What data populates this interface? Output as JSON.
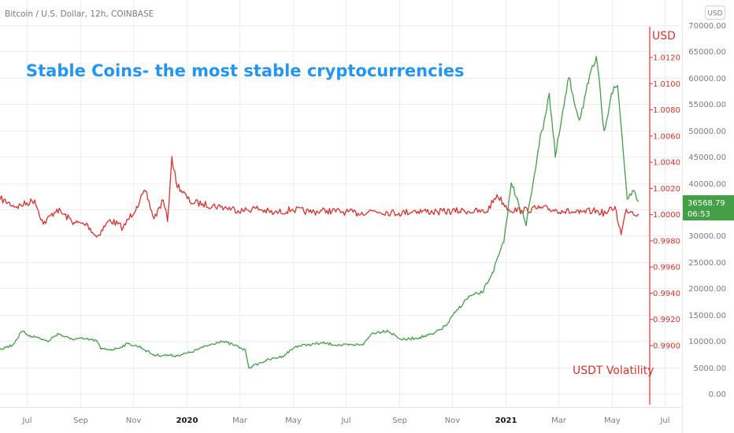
{
  "header": {
    "symbol_title": "Bitcoin / U.S. Dollar, 12h, COINBASE",
    "currency_button": "USD"
  },
  "annotations": {
    "main_title": "Stable Coins- the most stable cryptocurrencies",
    "usd_axis_label": "USD",
    "usdt_label": "USDT Volatility"
  },
  "price_tag": {
    "price": "36568.79",
    "countdown": "06:53"
  },
  "colors": {
    "btc_line": "#43a047",
    "usdt_line": "#e0302b",
    "title": "#2196f3",
    "price_tag": "#43a047",
    "grid": "#eceef2",
    "axis_text": "#787b86"
  },
  "chart_data": {
    "type": "line",
    "title": "Stable Coins- the most stable cryptocurrencies",
    "x_axis": {
      "tick_labels": [
        "Jul",
        "Sep",
        "Nov",
        "2020",
        "Mar",
        "May",
        "Jul",
        "Sep",
        "Nov",
        "2021",
        "Mar",
        "May",
        "Jul"
      ],
      "bold_labels": [
        "2020",
        "2021"
      ],
      "range": [
        "2019-06",
        "2021-07"
      ]
    },
    "y_axis_right": {
      "ticks": [
        "0.00",
        "5000.00",
        "10000.00",
        "15000.00",
        "20000.00",
        "25000.00",
        "30000.00",
        "35000.00",
        "40000.00",
        "45000.00",
        "50000.00",
        "55000.00",
        "60000.00",
        "65000.00",
        "70000.00"
      ],
      "range": [
        -1000,
        71000
      ]
    },
    "y_axis_usdt": {
      "label": "USD",
      "ticks": [
        "0.9900",
        "0.9920",
        "0.9940",
        "0.9960",
        "0.9980",
        "1.0000",
        "1.0020",
        "1.0040",
        "1.0060",
        "1.0080",
        "1.0100",
        "1.0120"
      ],
      "range": [
        0.9885,
        1.0127
      ]
    },
    "grid": true,
    "series": [
      {
        "name": "",
        "color": "#43a047",
        "axis": "right",
        "points": [
          [
            "2019-06-01",
            8500
          ],
          [
            "2019-06-15",
            9200
          ],
          [
            "2019-06-26",
            11800
          ],
          [
            "2019-07-05",
            11000
          ],
          [
            "2019-07-15",
            10600
          ],
          [
            "2019-07-25",
            9900
          ],
          [
            "2019-08-06",
            11400
          ],
          [
            "2019-08-20",
            10400
          ],
          [
            "2019-09-05",
            10400
          ],
          [
            "2019-09-20",
            10100
          ],
          [
            "2019-09-25",
            8500
          ],
          [
            "2019-10-10",
            8400
          ],
          [
            "2019-10-26",
            9500
          ],
          [
            "2019-11-10",
            8800
          ],
          [
            "2019-11-25",
            7300
          ],
          [
            "2019-12-10",
            7300
          ],
          [
            "2019-12-20",
            7200
          ],
          [
            "2020-01-05",
            7800
          ],
          [
            "2020-01-20",
            8800
          ],
          [
            "2020-02-10",
            10000
          ],
          [
            "2020-02-26",
            9200
          ],
          [
            "2020-03-08",
            8200
          ],
          [
            "2020-03-12",
            4900
          ],
          [
            "2020-03-16",
            5200
          ],
          [
            "2020-04-01",
            6300
          ],
          [
            "2020-04-20",
            7100
          ],
          [
            "2020-05-05",
            9000
          ],
          [
            "2020-05-20",
            9300
          ],
          [
            "2020-06-05",
            9600
          ],
          [
            "2020-06-25",
            9200
          ],
          [
            "2020-07-10",
            9200
          ],
          [
            "2020-07-22",
            9500
          ],
          [
            "2020-08-01",
            11500
          ],
          [
            "2020-08-18",
            12000
          ],
          [
            "2020-09-05",
            10200
          ],
          [
            "2020-09-25",
            10700
          ],
          [
            "2020-10-10",
            11300
          ],
          [
            "2020-10-25",
            13000
          ],
          [
            "2020-11-05",
            15500
          ],
          [
            "2020-11-20",
            18400
          ],
          [
            "2020-12-05",
            19200
          ],
          [
            "2020-12-17",
            23000
          ],
          [
            "2020-12-30",
            28800
          ],
          [
            "2021-01-08",
            40000
          ],
          [
            "2021-01-15",
            37000
          ],
          [
            "2021-01-25",
            32000
          ],
          [
            "2021-02-08",
            46000
          ],
          [
            "2021-02-21",
            57000
          ],
          [
            "2021-02-28",
            45000
          ],
          [
            "2021-03-13",
            60000
          ],
          [
            "2021-03-25",
            52000
          ],
          [
            "2021-04-05",
            59000
          ],
          [
            "2021-04-14",
            64000
          ],
          [
            "2021-04-23",
            50000
          ],
          [
            "2021-05-01",
            57000
          ],
          [
            "2021-05-08",
            58500
          ],
          [
            "2021-05-13",
            49000
          ],
          [
            "2021-05-19",
            37000
          ],
          [
            "2021-05-25",
            38500
          ],
          [
            "2021-06-01",
            36569
          ]
        ]
      },
      {
        "name": "USDT Volatility",
        "color": "#e0302b",
        "axis": "usdt",
        "points": [
          [
            "2019-06-01",
            1.0012
          ],
          [
            "2019-06-20",
            1.0006
          ],
          [
            "2019-07-10",
            1.0011
          ],
          [
            "2019-07-20",
            0.9993
          ],
          [
            "2019-08-05",
            1.0004
          ],
          [
            "2019-08-25",
            0.9994
          ],
          [
            "2019-09-10",
            0.9992
          ],
          [
            "2019-09-20",
            0.9983
          ],
          [
            "2019-10-05",
            0.9996
          ],
          [
            "2019-10-20",
            0.999
          ],
          [
            "2019-11-05",
            1.0006
          ],
          [
            "2019-11-15",
            1.0018
          ],
          [
            "2019-11-25",
            0.9997
          ],
          [
            "2019-12-05",
            1.0011
          ],
          [
            "2019-12-10",
            0.9995
          ],
          [
            "2019-12-15",
            1.0044
          ],
          [
            "2019-12-20",
            1.0024
          ],
          [
            "2020-01-05",
            1.001
          ],
          [
            "2020-01-20",
            1.0008
          ],
          [
            "2020-02-10",
            1.0006
          ],
          [
            "2020-03-05",
            1.0003
          ],
          [
            "2020-03-20",
            1.0005
          ],
          [
            "2020-04-10",
            1.0001
          ],
          [
            "2020-05-01",
            1.0004
          ],
          [
            "2020-05-20",
            1.0002
          ],
          [
            "2020-06-10",
            1.0003
          ],
          [
            "2020-07-01",
            1.0002
          ],
          [
            "2020-07-15",
            1.0001
          ],
          [
            "2020-08-01",
            1.0003
          ],
          [
            "2020-09-01",
            1.0001
          ],
          [
            "2020-09-20",
            1.0003
          ],
          [
            "2020-10-15",
            1.0002
          ],
          [
            "2020-11-15",
            1.0003
          ],
          [
            "2020-12-10",
            1.0002
          ],
          [
            "2020-12-22",
            1.0015
          ],
          [
            "2021-01-05",
            1.0004
          ],
          [
            "2021-01-20",
            1.0003
          ],
          [
            "2021-02-10",
            1.0005
          ],
          [
            "2021-03-05",
            1.0003
          ],
          [
            "2021-03-25",
            1.0001
          ],
          [
            "2021-04-10",
            1.0003
          ],
          [
            "2021-04-25",
            1.0001
          ],
          [
            "2021-05-05",
            1.0006
          ],
          [
            "2021-05-12",
            0.9985
          ],
          [
            "2021-05-18",
            1.0004
          ],
          [
            "2021-05-25",
            1.0002
          ],
          [
            "2021-06-01",
            1.0
          ]
        ]
      }
    ]
  }
}
